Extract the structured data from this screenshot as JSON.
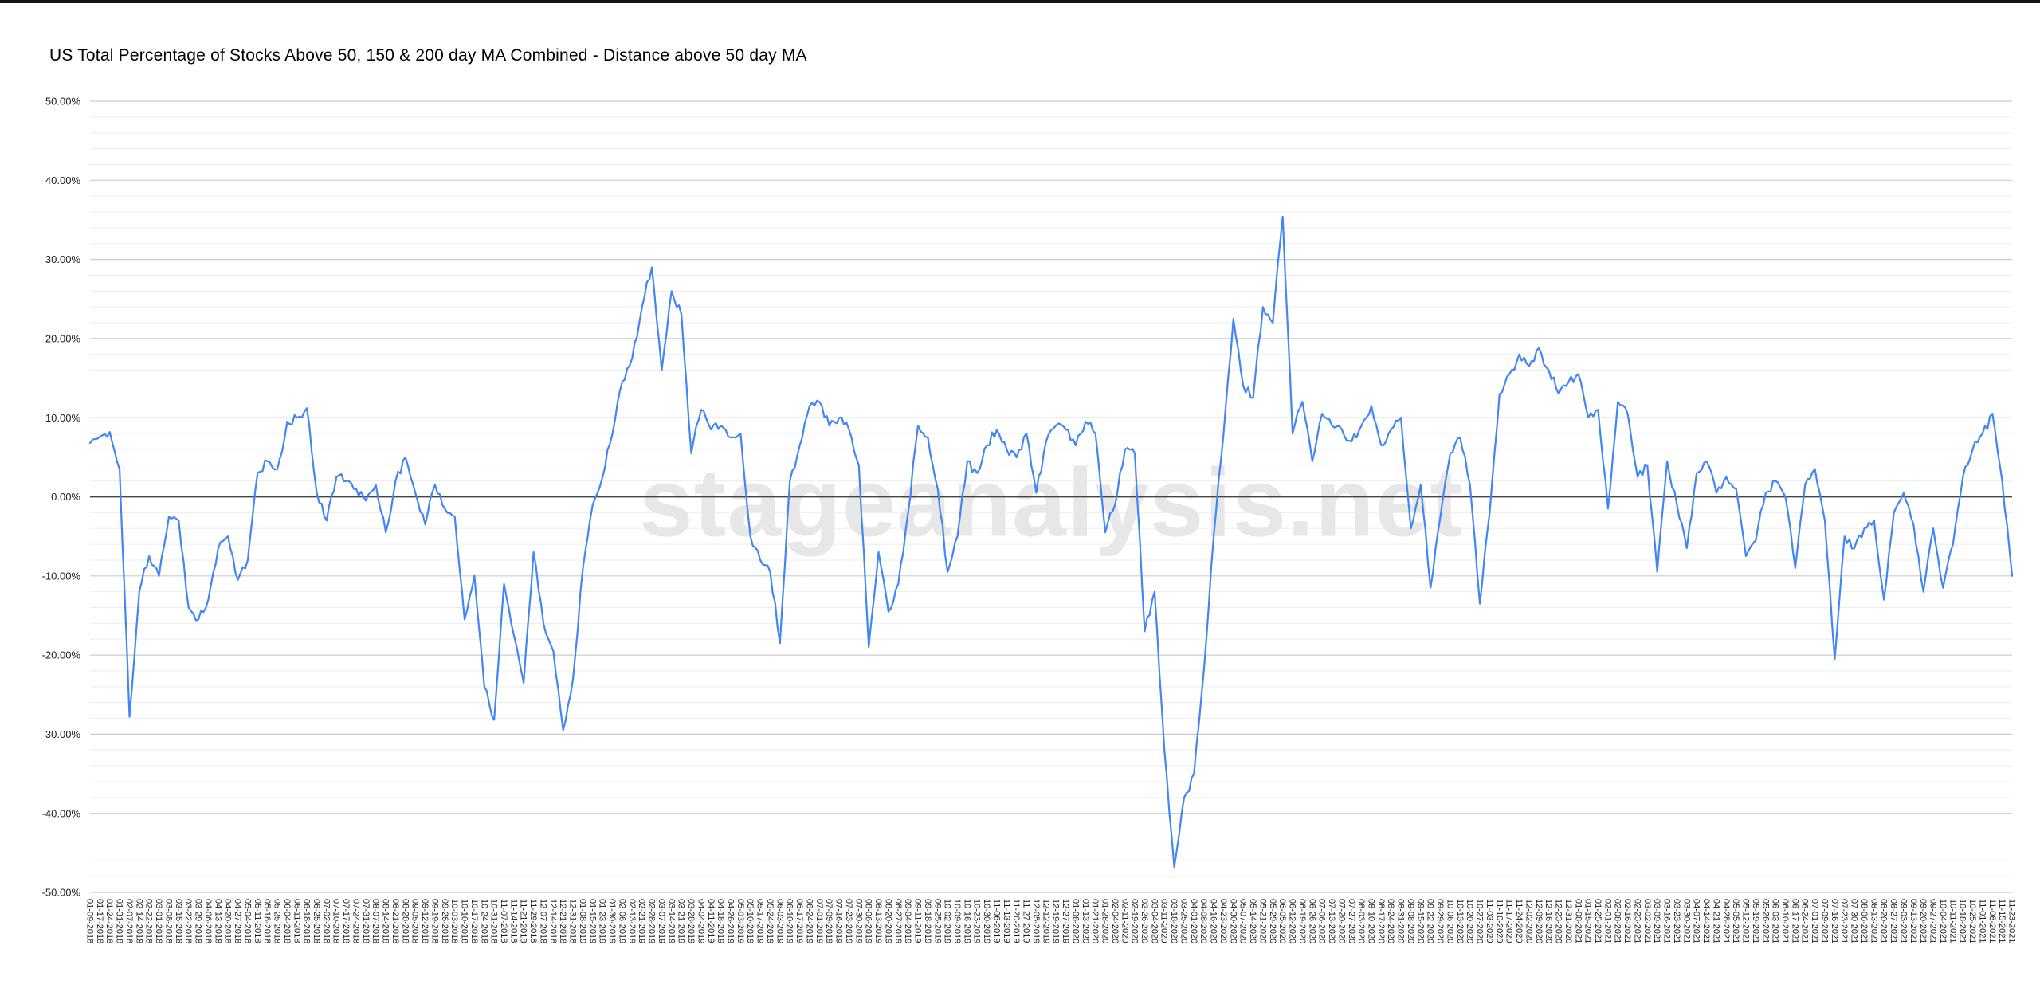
{
  "page": {
    "title": "US Total Percentage of Stocks Above 50, 150 & 200 day MA Combined - Distance above 50 day MA"
  },
  "watermark": {
    "text": "stageanalysis.net"
  },
  "colors": {
    "line": "#4285f4",
    "zero_axis": "#444444",
    "grid_major": "#cccccc",
    "grid_minor": "#ededed",
    "axis_text": "#1f1f1f",
    "watermark": "#e7e7e7",
    "background": "#ffffff",
    "top_bar": "#141414"
  },
  "chart_data": {
    "type": "line",
    "title": "US Total Percentage of Stocks Above 50, 150 & 200 day MA Combined - Distance above 50 day MA",
    "legend": "none",
    "grid": true,
    "ylim": [
      -50,
      50
    ],
    "y_major_step": 10,
    "y_minor_step": 2,
    "y_ticks": [
      {
        "value": 50,
        "label": "50.00%"
      },
      {
        "value": 40,
        "label": "40.00%"
      },
      {
        "value": 30,
        "label": "30.00%"
      },
      {
        "value": 20,
        "label": "20.00%"
      },
      {
        "value": 10,
        "label": "10.00%"
      },
      {
        "value": 0,
        "label": "0.00%"
      },
      {
        "value": -10,
        "label": "-10.00%"
      },
      {
        "value": -20,
        "label": "-20.00%"
      },
      {
        "value": -30,
        "label": "-30.00%"
      },
      {
        "value": -40,
        "label": "-40.00%"
      },
      {
        "value": -50,
        "label": "-50.00%"
      }
    ],
    "x": [
      "01-09-2018",
      "01-17-2018",
      "01-24-2018",
      "01-31-2018",
      "02-07-2018",
      "02-14-2018",
      "02-22-2018",
      "03-01-2018",
      "03-08-2018",
      "03-15-2018",
      "03-22-2018",
      "03-29-2018",
      "04-06-2018",
      "04-13-2018",
      "04-20-2018",
      "04-27-2018",
      "05-04-2018",
      "05-11-2018",
      "05-18-2018",
      "05-25-2018",
      "06-04-2018",
      "06-11-2018",
      "06-18-2018",
      "06-25-2018",
      "07-02-2018",
      "07-10-2018",
      "07-17-2018",
      "07-24-2018",
      "07-31-2018",
      "08-07-2018",
      "08-14-2018",
      "08-21-2018",
      "08-28-2018",
      "09-05-2018",
      "09-12-2018",
      "09-19-2018",
      "09-26-2018",
      "10-03-2018",
      "10-10-2018",
      "10-17-2018",
      "10-24-2018",
      "10-31-2018",
      "11-07-2018",
      "11-14-2018",
      "11-21-2018",
      "11-29-2018",
      "12-07-2018",
      "12-14-2018",
      "12-21-2018",
      "12-31-2018",
      "01-08-2019",
      "01-15-2019",
      "01-23-2019",
      "01-30-2019",
      "02-06-2019",
      "02-13-2019",
      "02-21-2019",
      "02-28-2019",
      "03-07-2019",
      "03-14-2019",
      "03-21-2019",
      "03-28-2019",
      "04-04-2019",
      "04-11-2019",
      "04-18-2019",
      "04-26-2019",
      "05-03-2019",
      "05-10-2019",
      "05-17-2019",
      "05-24-2019",
      "06-03-2019",
      "06-10-2019",
      "06-17-2019",
      "06-24-2019",
      "07-01-2019",
      "07-09-2019",
      "07-16-2019",
      "07-23-2019",
      "07-30-2019",
      "08-06-2019",
      "08-13-2019",
      "08-20-2019",
      "08-27-2019",
      "09-04-2019",
      "09-11-2019",
      "09-18-2019",
      "09-25-2019",
      "10-02-2019",
      "10-09-2019",
      "10-16-2019",
      "10-23-2019",
      "10-30-2019",
      "11-06-2019",
      "11-13-2019",
      "11-20-2019",
      "11-27-2019",
      "12-05-2019",
      "12-12-2019",
      "12-19-2019",
      "12-27-2019",
      "01-06-2020",
      "01-13-2020",
      "01-21-2020",
      "01-28-2020",
      "02-04-2020",
      "02-11-2020",
      "02-19-2020",
      "02-26-2020",
      "03-04-2020",
      "03-11-2020",
      "03-18-2020",
      "03-25-2020",
      "04-01-2020",
      "04-08-2020",
      "04-16-2020",
      "04-23-2020",
      "04-30-2020",
      "05-07-2020",
      "05-14-2020",
      "05-21-2020",
      "05-29-2020",
      "06-05-2020",
      "06-12-2020",
      "06-19-2020",
      "06-26-2020",
      "07-06-2020",
      "07-13-2020",
      "07-20-2020",
      "07-27-2020",
      "08-03-2020",
      "08-10-2020",
      "08-17-2020",
      "08-24-2020",
      "08-31-2020",
      "09-08-2020",
      "09-15-2020",
      "09-22-2020",
      "09-29-2020",
      "10-06-2020",
      "10-13-2020",
      "10-20-2020",
      "10-27-2020",
      "11-03-2020",
      "11-10-2020",
      "11-17-2020",
      "11-24-2020",
      "12-02-2020",
      "12-09-2020",
      "12-16-2020",
      "12-23-2020",
      "12-31-2020",
      "01-08-2021",
      "01-15-2021",
      "01-25-2021",
      "02-01-2021",
      "02-08-2021",
      "02-16-2021",
      "02-23-2021",
      "03-02-2021",
      "03-09-2021",
      "03-16-2021",
      "03-23-2021",
      "03-30-2021",
      "04-07-2021",
      "04-14-2021",
      "04-21-2021",
      "04-28-2021",
      "05-05-2021",
      "05-12-2021",
      "05-19-2021",
      "05-26-2021",
      "06-03-2021",
      "06-10-2021",
      "06-17-2021",
      "06-24-2021",
      "07-01-2021",
      "07-09-2021",
      "07-16-2021",
      "07-23-2021",
      "07-30-2021",
      "08-06-2021",
      "08-13-2021",
      "08-20-2021",
      "08-27-2021",
      "09-03-2021",
      "09-13-2021",
      "09-20-2021",
      "09-27-2021",
      "10-04-2021",
      "10-11-2021",
      "10-18-2021",
      "10-25-2021",
      "11-01-2021",
      "11-08-2021",
      "11-15-2021",
      "11-23-2021"
    ],
    "values": [
      6.8,
      7.6,
      8.2,
      3.5,
      -27.8,
      -12.0,
      -7.5,
      -10.0,
      -2.5,
      -3.0,
      -14.0,
      -15.5,
      -13.0,
      -6.5,
      -5.0,
      -10.5,
      -8.0,
      3.0,
      4.5,
      3.5,
      9.5,
      10.0,
      11.2,
      0.5,
      -3.0,
      2.5,
      2.0,
      1.0,
      -0.5,
      1.5,
      -4.5,
      2.0,
      5.0,
      0.5,
      -3.5,
      1.5,
      -1.5,
      -2.5,
      -15.5,
      -10.0,
      -24.0,
      -28.2,
      -11.0,
      -17.5,
      -23.5,
      -7.0,
      -16.0,
      -19.5,
      -29.5,
      -23.0,
      -9.0,
      -1.0,
      2.5,
      8.0,
      14.5,
      17.5,
      24.0,
      29.0,
      16.0,
      26.0,
      23.0,
      5.5,
      11.0,
      8.5,
      9.0,
      7.5,
      8.0,
      -5.0,
      -8.0,
      -9.5,
      -18.5,
      2.0,
      6.5,
      11.5,
      12.0,
      9.0,
      10.0,
      8.5,
      4.0,
      -19.0,
      -7.0,
      -14.5,
      -11.0,
      -2.0,
      9.0,
      7.5,
      1.0,
      -9.5,
      -5.0,
      4.5,
      3.0,
      6.5,
      8.5,
      6.0,
      5.0,
      8.0,
      0.5,
      7.0,
      9.0,
      8.5,
      6.5,
      9.5,
      8.0,
      -4.5,
      -1.0,
      6.0,
      5.5,
      -17.0,
      -12.0,
      -32.0,
      -46.8,
      -38.0,
      -35.0,
      -22.0,
      -5.0,
      8.0,
      22.5,
      14.0,
      12.5,
      24.0,
      22.0,
      35.4,
      8.0,
      12.0,
      4.5,
      10.5,
      9.0,
      8.5,
      7.0,
      9.0,
      11.5,
      6.5,
      8.5,
      10.0,
      -4.0,
      1.5,
      -11.5,
      -2.5,
      5.5,
      7.5,
      1.5,
      -13.5,
      -2.0,
      13.0,
      15.5,
      18.0,
      16.5,
      18.8,
      16.0,
      13.0,
      14.5,
      15.5,
      10.0,
      11.0,
      -1.5,
      12.0,
      10.5,
      2.5,
      4.0,
      -9.5,
      4.5,
      -1.0,
      -6.5,
      3.0,
      4.5,
      0.5,
      2.5,
      1.0,
      -7.5,
      -5.5,
      0.5,
      2.0,
      0.0,
      -9.0,
      1.5,
      3.5,
      -3.0,
      -20.5,
      -5.0,
      -6.5,
      -4.0,
      -3.0,
      -13.0,
      -2.0,
      0.5,
      -3.5,
      -12.0,
      -4.0,
      -11.5,
      -6.0,
      2.5,
      6.0,
      8.0,
      10.5,
      2.0,
      -10.0
    ]
  }
}
